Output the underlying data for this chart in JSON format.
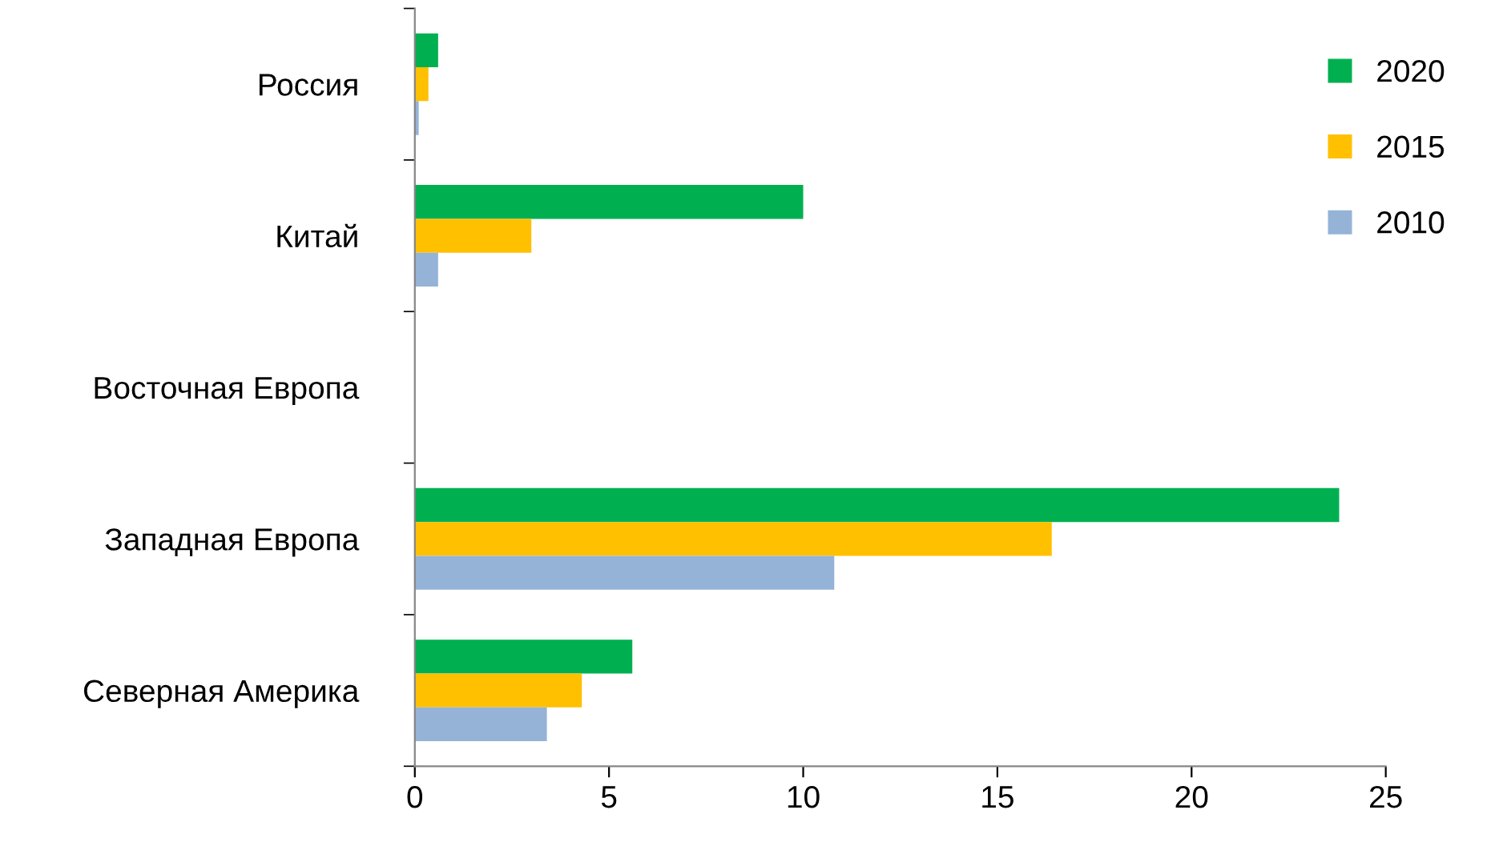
{
  "chart_data": {
    "type": "bar",
    "orientation": "horizontal",
    "categories": [
      "Россия",
      "Китай",
      "Восточная Европа",
      "Западная Европа",
      "Северная Америка"
    ],
    "series": [
      {
        "name": "2020",
        "color": "#00b050",
        "values": [
          0.6,
          10.0,
          null,
          23.8,
          5.6
        ]
      },
      {
        "name": "2015",
        "color": "#ffc000",
        "values": [
          0.35,
          3.0,
          null,
          16.4,
          4.3
        ]
      },
      {
        "name": "2010",
        "color": "#95b3d7",
        "values": [
          0.1,
          0.6,
          null,
          10.8,
          3.4
        ]
      }
    ],
    "xlim": [
      0,
      25
    ],
    "xticks": [
      0,
      5,
      10,
      15,
      20,
      25
    ],
    "grid": false,
    "legend": "top right"
  }
}
